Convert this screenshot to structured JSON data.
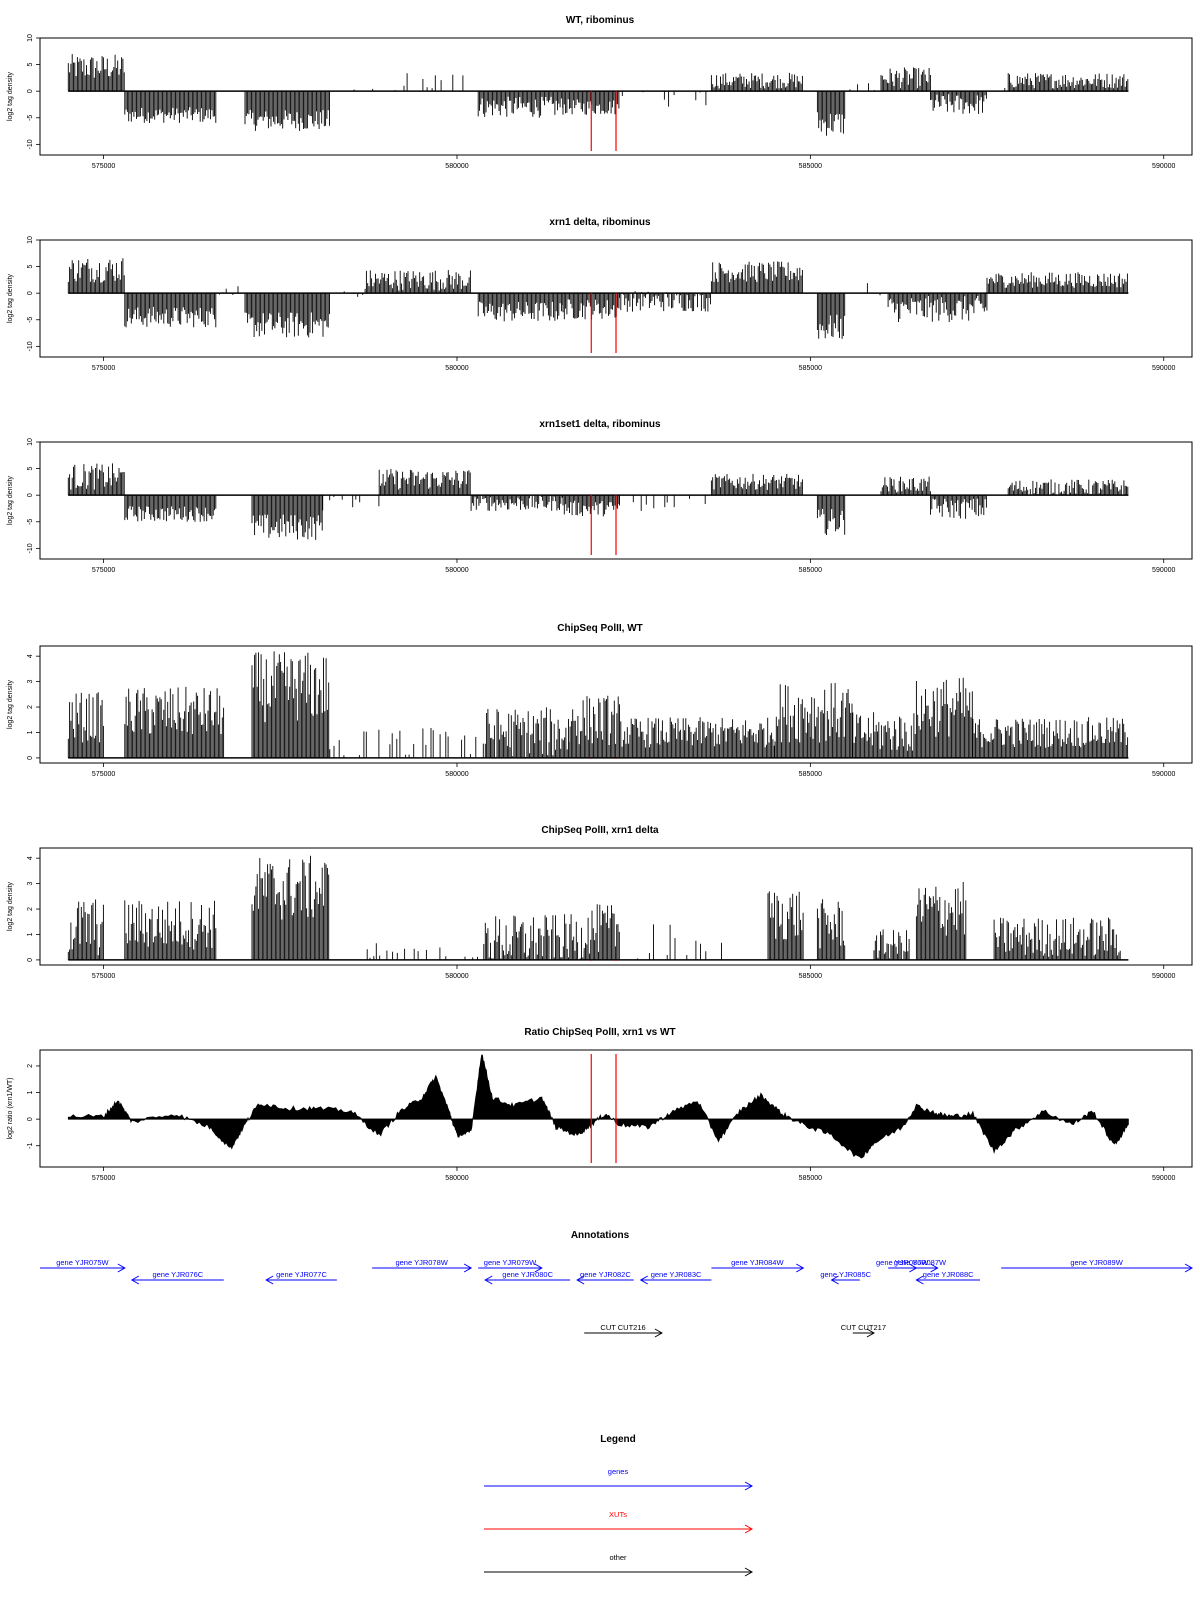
{
  "colors": {
    "gene": "#0000ff",
    "xut": "#ff0000",
    "other": "#000000",
    "marker": "#ff0000"
  },
  "x_axis": {
    "range": [
      574100,
      590400
    ],
    "ticks": [
      575000,
      580000,
      585000,
      590000
    ]
  },
  "markers": [
    581900,
    582250
  ],
  "chart_data": [
    {
      "type": "bar",
      "title": "WT, ribominus",
      "ylabel": "log2 tag density",
      "ylim": [
        -12,
        10
      ],
      "yticks": [
        -10,
        -5,
        0,
        5,
        10
      ],
      "segments": [
        {
          "start": 574500,
          "end": 575300,
          "level": 4.5,
          "noise": 2.5
        },
        {
          "start": 575300,
          "end": 576600,
          "level": -4.5,
          "noise": 1.5
        },
        {
          "start": 577000,
          "end": 578200,
          "level": -5.5,
          "noise": 2
        },
        {
          "start": 578400,
          "end": 579200,
          "level": 0.3,
          "noise": 0.5,
          "sparse": true
        },
        {
          "start": 579200,
          "end": 580200,
          "level": 2,
          "noise": 1.5,
          "sparse": true
        },
        {
          "start": 580300,
          "end": 581500,
          "level": -3,
          "noise": 2
        },
        {
          "start": 581500,
          "end": 582300,
          "level": -3,
          "noise": 1.5
        },
        {
          "start": 582300,
          "end": 583600,
          "level": -1.5,
          "noise": 1.5,
          "sparse": true
        },
        {
          "start": 583600,
          "end": 584900,
          "level": 2,
          "noise": 1.5
        },
        {
          "start": 585100,
          "end": 585500,
          "level": -6,
          "noise": 2.5
        },
        {
          "start": 585500,
          "end": 586000,
          "level": 0.5,
          "noise": 1,
          "sparse": true
        },
        {
          "start": 586000,
          "end": 586700,
          "level": 2.5,
          "noise": 2
        },
        {
          "start": 586700,
          "end": 587500,
          "level": -2.5,
          "noise": 2
        },
        {
          "start": 587500,
          "end": 587800,
          "level": 0.5,
          "noise": 1,
          "sparse": true
        },
        {
          "start": 587800,
          "end": 589500,
          "level": 2,
          "noise": 1.5
        }
      ]
    },
    {
      "type": "bar",
      "title": "xrn1 delta, ribominus",
      "ylabel": "log2 tag density",
      "ylim": [
        -12,
        10
      ],
      "yticks": [
        -10,
        -5,
        0,
        5,
        10
      ],
      "segments": [
        {
          "start": 574500,
          "end": 575300,
          "level": 4.5,
          "noise": 2.5
        },
        {
          "start": 575300,
          "end": 576600,
          "level": -4.5,
          "noise": 2
        },
        {
          "start": 576600,
          "end": 577000,
          "level": 0.5,
          "noise": 1,
          "sparse": true
        },
        {
          "start": 577000,
          "end": 578200,
          "level": -6,
          "noise": 2.5
        },
        {
          "start": 578200,
          "end": 578700,
          "level": -0.5,
          "noise": 1,
          "sparse": true
        },
        {
          "start": 578700,
          "end": 580200,
          "level": 2.5,
          "noise": 2
        },
        {
          "start": 580300,
          "end": 581500,
          "level": -3.5,
          "noise": 2
        },
        {
          "start": 581500,
          "end": 582300,
          "level": -3,
          "noise": 2
        },
        {
          "start": 582300,
          "end": 583600,
          "level": -1.5,
          "noise": 2
        },
        {
          "start": 583600,
          "end": 584900,
          "level": 4,
          "noise": 2
        },
        {
          "start": 585100,
          "end": 585500,
          "level": -6.5,
          "noise": 2.5
        },
        {
          "start": 585500,
          "end": 586100,
          "level": 1,
          "noise": 1.5,
          "sparse": true
        },
        {
          "start": 586100,
          "end": 587500,
          "level": -3,
          "noise": 2.5
        },
        {
          "start": 587500,
          "end": 589500,
          "level": 2.5,
          "noise": 1.5
        }
      ]
    },
    {
      "type": "bar",
      "title": "xrn1set1 delta, ribominus",
      "ylabel": "log2 tag density",
      "ylim": [
        -12,
        10
      ],
      "yticks": [
        -10,
        -5,
        0,
        5,
        10
      ],
      "segments": [
        {
          "start": 574500,
          "end": 575300,
          "level": 3.5,
          "noise": 2.5
        },
        {
          "start": 575300,
          "end": 576600,
          "level": -3.5,
          "noise": 1.5
        },
        {
          "start": 577100,
          "end": 578100,
          "level": -6,
          "noise": 2.5
        },
        {
          "start": 578100,
          "end": 578900,
          "level": -1.5,
          "noise": 1.5,
          "sparse": true
        },
        {
          "start": 578900,
          "end": 580200,
          "level": 3,
          "noise": 2
        },
        {
          "start": 580200,
          "end": 581500,
          "level": -1.5,
          "noise": 1.5
        },
        {
          "start": 581500,
          "end": 582300,
          "level": -2.5,
          "noise": 1.5
        },
        {
          "start": 582300,
          "end": 583600,
          "level": -1.5,
          "noise": 1.5,
          "sparse": true
        },
        {
          "start": 583600,
          "end": 584900,
          "level": 2.5,
          "noise": 1.5
        },
        {
          "start": 585100,
          "end": 585500,
          "level": -5,
          "noise": 2.5
        },
        {
          "start": 586000,
          "end": 586700,
          "level": 2,
          "noise": 1.5
        },
        {
          "start": 586700,
          "end": 587500,
          "level": -2.5,
          "noise": 2
        },
        {
          "start": 587800,
          "end": 589500,
          "level": 1.5,
          "noise": 1.5
        }
      ]
    },
    {
      "type": "bar",
      "title": "ChipSeq PolII, WT",
      "ylabel": "log2 tag density",
      "ylim": [
        -0.2,
        4.4
      ],
      "yticks": [
        0,
        1,
        2,
        3,
        4
      ],
      "segments": [
        {
          "start": 574500,
          "end": 575000,
          "level": 1.6,
          "noise": 1
        },
        {
          "start": 575300,
          "end": 576700,
          "level": 1.8,
          "noise": 1
        },
        {
          "start": 577100,
          "end": 578200,
          "level": 2.8,
          "noise": 1.4
        },
        {
          "start": 578200,
          "end": 580400,
          "level": 0.6,
          "noise": 0.6,
          "sparse": true
        },
        {
          "start": 580400,
          "end": 581600,
          "level": 1,
          "noise": 1
        },
        {
          "start": 581600,
          "end": 582300,
          "level": 1.5,
          "noise": 1
        },
        {
          "start": 582300,
          "end": 584500,
          "level": 1,
          "noise": 0.6
        },
        {
          "start": 584500,
          "end": 585000,
          "level": 1.8,
          "noise": 1.2
        },
        {
          "start": 585000,
          "end": 585600,
          "level": 1.8,
          "noise": 1.2
        },
        {
          "start": 585600,
          "end": 586500,
          "level": 1,
          "noise": 0.8
        },
        {
          "start": 586500,
          "end": 587300,
          "level": 2,
          "noise": 1.2
        },
        {
          "start": 587300,
          "end": 589500,
          "level": 1,
          "noise": 0.6
        }
      ]
    },
    {
      "type": "bar",
      "title": "ChipSeq PolII, xrn1 delta",
      "ylabel": "log2 tag density",
      "ylim": [
        -0.2,
        4.4
      ],
      "yticks": [
        0,
        1,
        2,
        3,
        4
      ],
      "segments": [
        {
          "start": 574500,
          "end": 575000,
          "level": 1.3,
          "noise": 1.2
        },
        {
          "start": 575300,
          "end": 576600,
          "level": 1.4,
          "noise": 1
        },
        {
          "start": 577100,
          "end": 578200,
          "level": 2.8,
          "noise": 1.3
        },
        {
          "start": 578700,
          "end": 580400,
          "level": 0.3,
          "noise": 0.4,
          "sparse": true
        },
        {
          "start": 580400,
          "end": 581800,
          "level": 0.8,
          "noise": 1
        },
        {
          "start": 581800,
          "end": 582300,
          "level": 1.2,
          "noise": 1
        },
        {
          "start": 582500,
          "end": 583800,
          "level": 0.6,
          "noise": 0.8,
          "sparse": true
        },
        {
          "start": 584400,
          "end": 584900,
          "level": 1.8,
          "noise": 1.1
        },
        {
          "start": 585100,
          "end": 585500,
          "level": 1.4,
          "noise": 1
        },
        {
          "start": 585900,
          "end": 586400,
          "level": 0.6,
          "noise": 0.6
        },
        {
          "start": 586500,
          "end": 587200,
          "level": 2,
          "noise": 1.1
        },
        {
          "start": 587600,
          "end": 589400,
          "level": 0.9,
          "noise": 0.8
        }
      ]
    },
    {
      "type": "area",
      "title": "Ratio ChipSeq PolII, xrn1 vs WT",
      "ylabel": "log2 ratio (xrn1/WT)",
      "ylim": [
        -1.8,
        2.6
      ],
      "yticks": [
        -1,
        0,
        1,
        2
      ],
      "points": [
        [
          574500,
          0.1
        ],
        [
          575000,
          0.1
        ],
        [
          575200,
          0.7
        ],
        [
          575400,
          -0.1
        ],
        [
          576000,
          0.2
        ],
        [
          576500,
          -0.3
        ],
        [
          576800,
          -1.1
        ],
        [
          577000,
          -0.2
        ],
        [
          577200,
          0.6
        ],
        [
          577600,
          0.4
        ],
        [
          578000,
          0.4
        ],
        [
          578500,
          0.3
        ],
        [
          578900,
          -0.6
        ],
        [
          579200,
          0.3
        ],
        [
          579500,
          0.8
        ],
        [
          579700,
          1.6
        ],
        [
          579900,
          0.2
        ],
        [
          580000,
          -0.6
        ],
        [
          580200,
          -0.5
        ],
        [
          580350,
          2.5
        ],
        [
          580500,
          0.8
        ],
        [
          580800,
          0.5
        ],
        [
          581200,
          0.8
        ],
        [
          581400,
          -0.3
        ],
        [
          581700,
          -0.6
        ],
        [
          581900,
          -0.2
        ],
        [
          582100,
          0.2
        ],
        [
          582300,
          -0.2
        ],
        [
          582700,
          -0.3
        ],
        [
          583000,
          0.2
        ],
        [
          583400,
          0.7
        ],
        [
          583700,
          -0.8
        ],
        [
          584000,
          0.3
        ],
        [
          584300,
          0.9
        ],
        [
          584600,
          0.2
        ],
        [
          584900,
          -0.2
        ],
        [
          585300,
          -0.6
        ],
        [
          585700,
          -1.5
        ],
        [
          585900,
          -0.9
        ],
        [
          586300,
          -0.3
        ],
        [
          586500,
          0.5
        ],
        [
          586800,
          0.2
        ],
        [
          587000,
          0.1
        ],
        [
          587300,
          0.2
        ],
        [
          587600,
          -1.2
        ],
        [
          587900,
          -0.4
        ],
        [
          588300,
          0.3
        ],
        [
          588700,
          -0.2
        ],
        [
          589000,
          0.3
        ],
        [
          589300,
          -1.0
        ],
        [
          589500,
          -0.2
        ]
      ]
    }
  ],
  "annotations": {
    "title": "Annotations",
    "features": [
      {
        "label": "gene YJR075W",
        "start": 574100,
        "end": 575300,
        "strand": "+",
        "row": 0,
        "color": "gene"
      },
      {
        "label": "gene YJR076C",
        "start": 575400,
        "end": 576700,
        "strand": "-",
        "row": 1,
        "color": "gene"
      },
      {
        "label": "gene YJR077C",
        "start": 577300,
        "end": 578300,
        "strand": "-",
        "row": 1,
        "color": "gene"
      },
      {
        "label": "gene YJR078W",
        "start": 578800,
        "end": 580200,
        "strand": "+",
        "row": 0,
        "color": "gene"
      },
      {
        "label": "gene YJR079W",
        "start": 580300,
        "end": 581200,
        "strand": "+",
        "row": 0,
        "color": "gene"
      },
      {
        "label": "gene YJR080C",
        "start": 580400,
        "end": 581600,
        "strand": "-",
        "row": 1,
        "color": "gene"
      },
      {
        "label": "gene YJR082C",
        "start": 581700,
        "end": 582500,
        "strand": "-",
        "row": 1,
        "color": "gene"
      },
      {
        "label": "gene YJR083C",
        "start": 582600,
        "end": 583600,
        "strand": "-",
        "row": 1,
        "color": "gene"
      },
      {
        "label": "gene YJR084W",
        "start": 583600,
        "end": 584900,
        "strand": "+",
        "row": 0,
        "color": "gene"
      },
      {
        "label": "gene YJR085C",
        "start": 585300,
        "end": 585700,
        "strand": "-",
        "row": 1,
        "color": "gene"
      },
      {
        "label": "gene YJR086W",
        "start": 586100,
        "end": 586500,
        "strand": "+",
        "row": 0,
        "color": "gene"
      },
      {
        "label": "gene YJR087W",
        "start": 586300,
        "end": 586800,
        "strand": "+",
        "row": 0,
        "color": "gene"
      },
      {
        "label": "gene YJR088C",
        "start": 586500,
        "end": 587400,
        "strand": "-",
        "row": 1,
        "color": "gene"
      },
      {
        "label": "gene YJR089W",
        "start": 587700,
        "end": 590400,
        "strand": "+",
        "row": 0,
        "color": "gene"
      },
      {
        "label": "CUT CUT216",
        "start": 581800,
        "end": 582900,
        "strand": "+",
        "row": 2,
        "color": "other"
      },
      {
        "label": "CUT CUT217",
        "start": 585600,
        "end": 585900,
        "strand": "+",
        "row": 2,
        "color": "other"
      }
    ]
  },
  "legend": {
    "title": "Legend",
    "items": [
      {
        "label": "genes",
        "color": "gene"
      },
      {
        "label": "XUTs",
        "color": "xut"
      },
      {
        "label": "other",
        "color": "other"
      }
    ]
  }
}
